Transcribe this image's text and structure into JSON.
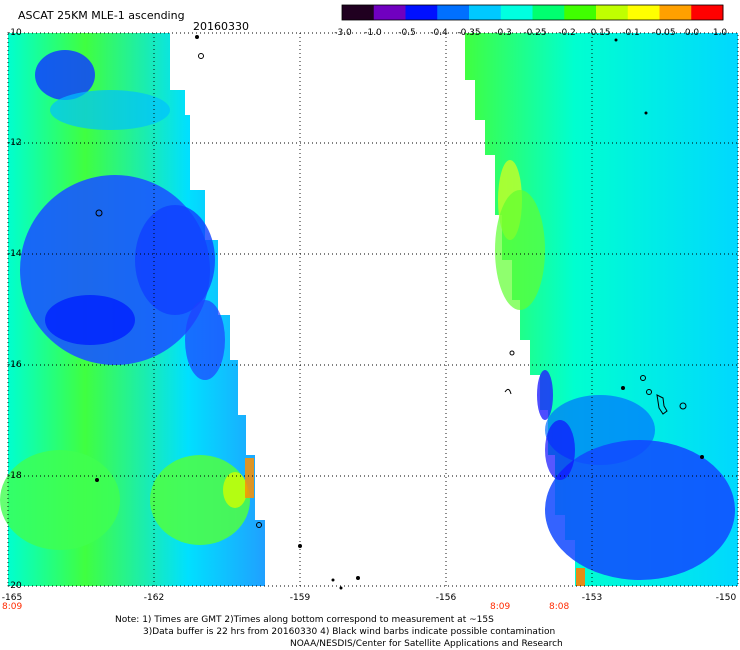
{
  "header": {
    "title": "ASCAT 25KM MLE-1 ascending",
    "date": "20160330"
  },
  "colorbar": {
    "labels": [
      "-3.0",
      "-1.0",
      "-0.5",
      "-0.4",
      "-0.35",
      "-0.3",
      "-0.25",
      "-0.2",
      "-0.15",
      "-0.1",
      "-0.05",
      "0.0",
      "1.0"
    ],
    "colors": [
      "#200020",
      "#7000c0",
      "#0010ff",
      "#0070ff",
      "#00c8ff",
      "#00ffe0",
      "#00ff70",
      "#40ff00",
      "#c0ff00",
      "#ffff00",
      "#ffa000",
      "#ff0000"
    ]
  },
  "axes": {
    "y_labels": [
      "-10",
      "-12",
      "-14",
      "-16",
      "-18",
      "-20"
    ],
    "x_labels": [
      "-165",
      "-162",
      "-159",
      "-156",
      "-153",
      "-150"
    ],
    "time_labels": [
      "8:09",
      "8:09",
      "8:08"
    ]
  },
  "notes": {
    "line1": "Note: 1) Times are GMT 2)Times along bottom correspond to measurement at ~15S",
    "line2": "3)Data buffer is 22 hrs from 20160330 4) Black wind barbs indicate possible contamination",
    "line3": "NOAA/NESDIS/Center for Satellite Applications and Research"
  }
}
